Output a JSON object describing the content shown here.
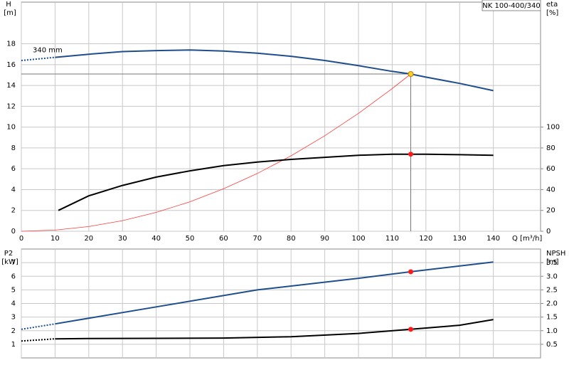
{
  "chart_data": [
    {
      "type": "line",
      "title": "NK 100-400/340",
      "y_label": "H",
      "y_unit": "[m]",
      "y2_label": "eta",
      "y2_unit": "[%]",
      "x_label": "Q [m³/h]",
      "annotation": "340 mm",
      "xlim": [
        0,
        154
      ],
      "xticks": [
        0,
        10,
        20,
        30,
        40,
        50,
        60,
        70,
        80,
        90,
        100,
        110,
        120,
        130,
        140
      ],
      "ylim": [
        0,
        22
      ],
      "yticks": [
        0,
        2,
        4,
        6,
        8,
        10,
        12,
        14,
        16,
        18
      ],
      "y2lim": [
        0,
        220
      ],
      "y2ticks": [
        0,
        20,
        40,
        60,
        80,
        100
      ],
      "grid": true,
      "series": [
        {
          "color": "#1f4e8c",
          "width": 2,
          "dashed": true,
          "x": [
            0,
            10
          ],
          "values": [
            16.4,
            16.7
          ]
        },
        {
          "color": "#1f4e8c",
          "width": 2,
          "x": [
            10,
            20,
            30,
            40,
            50,
            60,
            70,
            80,
            90,
            100,
            110,
            115.5,
            120,
            130,
            140
          ],
          "values": [
            16.7,
            17.0,
            17.25,
            17.35,
            17.4,
            17.3,
            17.1,
            16.8,
            16.4,
            15.9,
            15.35,
            15.1,
            14.8,
            14.2,
            13.5
          ]
        },
        {
          "color": "#ff3b3b",
          "width": 0.8,
          "x": [
            0,
            10,
            20,
            30,
            40,
            50,
            60,
            70,
            80,
            90,
            100,
            110,
            115.5
          ],
          "values": [
            0,
            0.11,
            0.45,
            1.02,
            1.81,
            2.83,
            4.08,
            5.55,
            7.24,
            9.17,
            11.32,
            13.7,
            15.1
          ]
        },
        {
          "color": "#000000",
          "width": 2,
          "axis": "y2",
          "x": [
            11,
            20,
            30,
            40,
            50,
            60,
            70,
            80,
            90,
            100,
            110,
            115.5,
            120,
            130,
            140
          ],
          "values": [
            20,
            34,
            44,
            52,
            58,
            63,
            66.5,
            69,
            71,
            73,
            74,
            74,
            74,
            73.5,
            73
          ]
        }
      ],
      "guide": {
        "x": 115.5,
        "y": 15.1
      },
      "points": [
        {
          "x": 115.5,
          "y": 15.1,
          "color": "#ffd21f"
        },
        {
          "x": 115.5,
          "y": 74,
          "axis": "y2",
          "color": "#ff1a1a"
        }
      ]
    },
    {
      "type": "line",
      "y_label": "P2",
      "y_unit": "[kW]",
      "y2_label": "NPSH",
      "y2_unit": "[m]",
      "xlim": [
        0,
        154
      ],
      "ylim": [
        0,
        8
      ],
      "yticks": [
        1,
        2,
        3,
        4,
        5,
        6,
        7
      ],
      "y2lim": [
        0,
        4
      ],
      "y2ticks": [
        {
          "value": 0.5,
          "label": "0.5"
        },
        {
          "value": 1,
          "label": "1.0"
        },
        {
          "value": 1.5,
          "label": "1.5"
        },
        {
          "value": 2,
          "label": "2.0"
        },
        {
          "value": 2.5,
          "label": "2.5"
        },
        {
          "value": 3,
          "label": "3.0"
        },
        {
          "value": 3.5,
          "label": "3.5"
        }
      ],
      "grid": true,
      "series": [
        {
          "color": "#1f4e8c",
          "width": 2,
          "dashed": true,
          "x": [
            0,
            10
          ],
          "values": [
            2.1,
            2.5
          ]
        },
        {
          "color": "#1f4e8c",
          "width": 2,
          "x": [
            10,
            40,
            70,
            100,
            115.5,
            140
          ],
          "values": [
            2.5,
            3.75,
            5.0,
            5.85,
            6.33,
            7.05
          ]
        },
        {
          "color": "#000000",
          "width": 2,
          "dashed": true,
          "axis": "y2",
          "x": [
            0,
            10
          ],
          "values": [
            0.62,
            0.7
          ]
        },
        {
          "color": "#000000",
          "width": 2,
          "axis": "y2",
          "x": [
            10,
            20,
            40,
            60,
            80,
            100,
            115.5,
            130,
            140
          ],
          "values": [
            0.7,
            0.71,
            0.72,
            0.73,
            0.78,
            0.9,
            1.05,
            1.2,
            1.41
          ]
        }
      ],
      "points": [
        {
          "x": 115.5,
          "y": 6.33,
          "color": "#ff1a1a"
        },
        {
          "x": 115.5,
          "y": 1.05,
          "axis": "y2",
          "color": "#ff1a1a"
        }
      ]
    }
  ]
}
